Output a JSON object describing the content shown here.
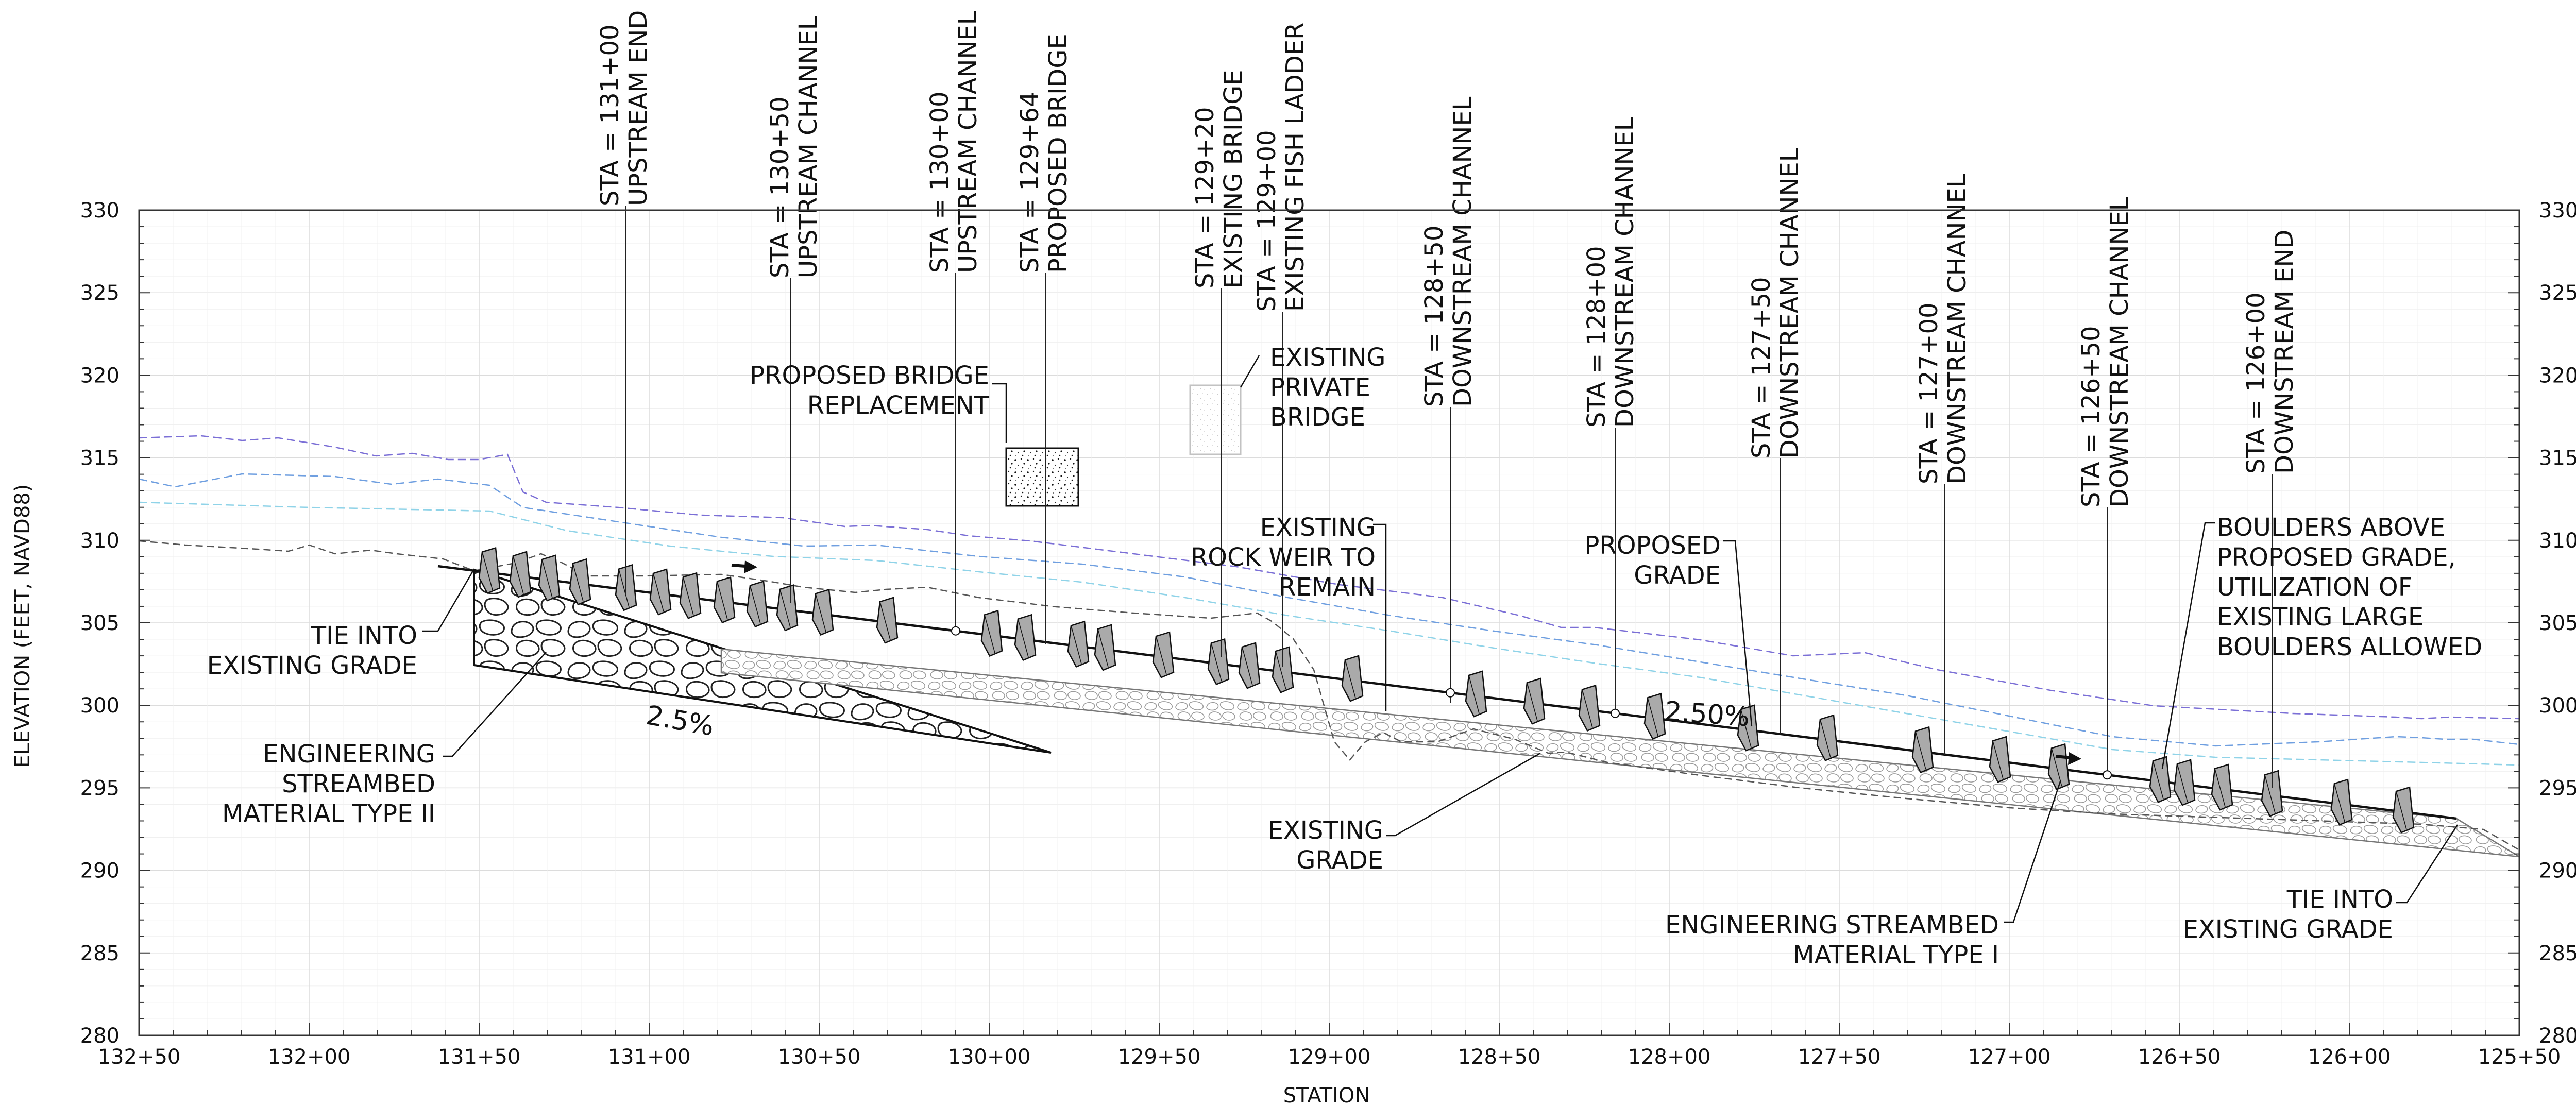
{
  "axes": {
    "y_label": "ELEVATION (FEET, NAVD88)",
    "x_label": "STATION",
    "y_ticks": [
      "280",
      "285",
      "290",
      "295",
      "300",
      "305",
      "310",
      "315",
      "320",
      "325",
      "330"
    ],
    "x_ticks": [
      "132+50",
      "132+00",
      "131+50",
      "131+00",
      "130+50",
      "130+00",
      "129+50",
      "129+00",
      "128+50",
      "128+00",
      "127+50",
      "127+00",
      "126+50",
      "126+00",
      "125+50"
    ]
  },
  "stations": [
    {
      "line1": "STA = 131+00",
      "line2": "UPSTREAM END"
    },
    {
      "line1": "STA = 130+50",
      "line2": "UPSTREAM CHANNEL"
    },
    {
      "line1": "STA = 130+00",
      "line2": "UPSTREAM CHANNEL"
    },
    {
      "line1": "STA = 129+64",
      "line2": "PROPOSED BRIDGE"
    },
    {
      "line1": "STA = 129+20",
      "line2": "EXISTING BRIDGE"
    },
    {
      "line1": "STA = 129+00",
      "line2": "EXISTING FISH LADDER"
    },
    {
      "line1": "STA = 128+50",
      "line2": "DOWNSTREAM CHANNEL"
    },
    {
      "line1": "STA = 128+00",
      "line2": "DOWNSTREAM CHANNEL"
    },
    {
      "line1": "STA = 127+50",
      "line2": "DOWNSTREAM CHANNEL"
    },
    {
      "line1": "STA = 127+00",
      "line2": "DOWNSTREAM CHANNEL"
    },
    {
      "line1": "STA = 126+50",
      "line2": "DOWNSTREAM CHANNEL"
    },
    {
      "line1": "STA = 126+00",
      "line2": "DOWNSTREAM END"
    }
  ],
  "annotations": {
    "proposed_bridge": [
      "PROPOSED BRIDGE",
      "REPLACEMENT"
    ],
    "private_bridge": [
      "EXISTING",
      "PRIVATE",
      "BRIDGE"
    ],
    "rock_weir": [
      "EXISTING",
      "ROCK WEIR TO",
      "REMAIN"
    ],
    "proposed_grade": [
      "PROPOSED",
      "GRADE"
    ],
    "boulders": [
      "BOULDERS ABOVE",
      "PROPOSED GRADE,",
      "UTILIZATION OF",
      "EXISTING LARGE",
      "BOULDERS ALLOWED"
    ],
    "tie_left": [
      "TIE INTO",
      "EXISTING GRADE"
    ],
    "esm_type2": [
      "ENGINEERING",
      "STREAMBED",
      "MATERIAL TYPE II"
    ],
    "existing_grade": [
      "EXISTING",
      "GRADE"
    ],
    "esm_type1": [
      "ENGINEERING STREAMBED",
      "MATERIAL TYPE I"
    ],
    "tie_right": [
      "TIE INTO",
      "EXISTING GRADE"
    ],
    "slope_left": "2.5%",
    "slope_right": "2.50%"
  },
  "colors": {
    "wse_high": "#7b6fd6",
    "wse_mid": "#6f9fe0",
    "wse_low": "#8fd3e8",
    "existing_grade": "#555555",
    "grid": "#e6e6e6",
    "frame": "#333333"
  }
}
